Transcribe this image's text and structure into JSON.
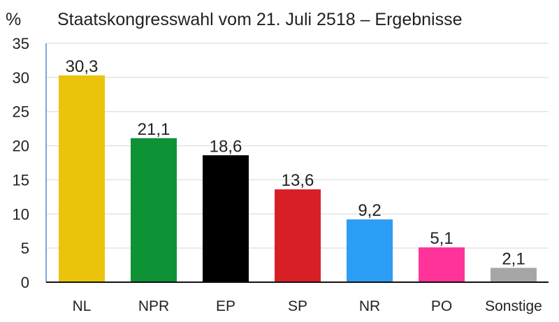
{
  "chart_data": {
    "type": "bar",
    "title": "Staatskongresswahl vom 21. Juli 2518 – Ergebnisse",
    "ylabel": "%",
    "xlabel": "",
    "ylim": [
      0,
      35
    ],
    "yticks": [
      0,
      5,
      10,
      15,
      20,
      25,
      30,
      35
    ],
    "grid": true,
    "categories": [
      "NL",
      "NPR",
      "EP",
      "SP",
      "NR",
      "PO",
      "Sonstige"
    ],
    "values": [
      30.3,
      21.1,
      18.6,
      13.6,
      9.2,
      5.1,
      2.1
    ],
    "value_labels": [
      "30,3",
      "21,1",
      "18,6",
      "13,6",
      "9,2",
      "5,1",
      "2,1"
    ],
    "colors": [
      "#EBC30A",
      "#0E9236",
      "#000000",
      "#D91F26",
      "#2D9EF5",
      "#FF3399",
      "#A6A6A6"
    ]
  }
}
